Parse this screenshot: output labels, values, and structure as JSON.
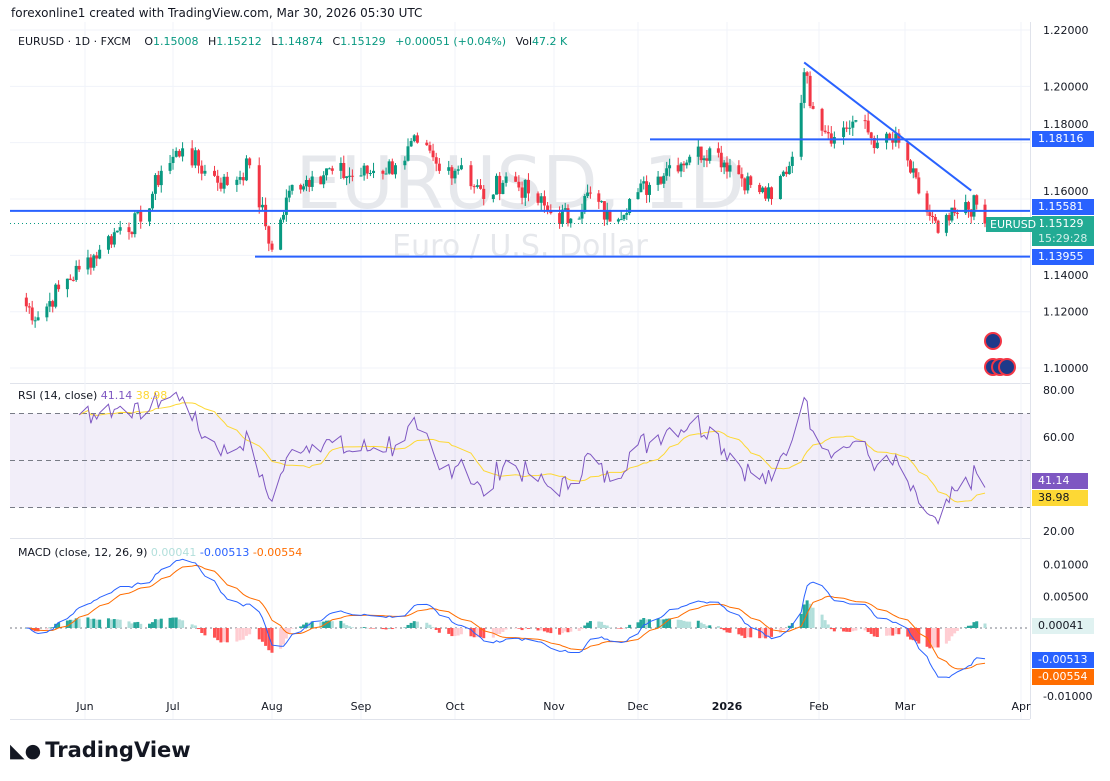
{
  "credit": "forexonline1 created with TradingView.com, Mar 30, 2026 05:30 UTC",
  "legend": {
    "symbol": "EURUSD · 1D · FXCM",
    "o_label": "O",
    "o": "1.15008",
    "h_label": "H",
    "h": "1.15212",
    "l_label": "L",
    "l": "1.14874",
    "c_label": "C",
    "c": "1.15129",
    "change": "+0.00051 (+0.04%)",
    "vol_label": "Vol",
    "vol": "47.2 K"
  },
  "watermark": {
    "title": "EURUSD, 1D",
    "subtitle": "Euro / U.S. Dollar"
  },
  "colors": {
    "up": "#089981",
    "down": "#f23645",
    "line": "#2962ff",
    "rsi": "#7e57c2",
    "rsi_ma": "#fdd835",
    "macd": "#2962ff",
    "signal": "#ff6d00"
  },
  "price_tags": {
    "res": "1.18116",
    "mid": "1.15581",
    "last": "1.15129",
    "countdown": "15:29:28",
    "sup": "1.13955",
    "symbol_tag": "EURUSD"
  },
  "rsi": {
    "label": "RSI (14, close)",
    "value": "41.14",
    "ma": "38.98"
  },
  "macd": {
    "label": "MACD (close, 12, 26, 9)",
    "hist": "0.00041",
    "macd": "-0.00513",
    "signal": "-0.00554"
  },
  "logo": "TradingView",
  "chart_data": {
    "type": "candlestick",
    "price_axis": {
      "ticks": [
        "1.22000",
        "1.20000",
        "1.18000",
        "1.16000",
        "1.14000",
        "1.12000",
        "1.10000"
      ],
      "range": [
        1.1,
        1.22
      ]
    },
    "rsi_axis": {
      "ticks": [
        "80.00",
        "60.00",
        "20.00"
      ],
      "bands": [
        70,
        50,
        30
      ]
    },
    "macd_axis": {
      "ticks": [
        "0.01000",
        "0.00500",
        "-0.01000"
      ]
    },
    "x_ticks": [
      "Jun",
      "Jul",
      "Aug",
      "Sep",
      "Oct",
      "Nov",
      "Dec",
      "2026",
      "Feb",
      "Mar",
      "Apr"
    ],
    "weekly_closes": [
      [
        "2025-05-09",
        1.125
      ],
      [
        "2025-05-16",
        1.118
      ],
      [
        "2025-05-23",
        1.128
      ],
      [
        "2025-05-30",
        1.135
      ],
      [
        "2025-06-06",
        1.142
      ],
      [
        "2025-06-13",
        1.15
      ],
      [
        "2025-06-20",
        1.152
      ],
      [
        "2025-06-27",
        1.17
      ],
      [
        "2025-07-04",
        1.178
      ],
      [
        "2025-07-11",
        1.17
      ],
      [
        "2025-07-18",
        1.165
      ],
      [
        "2025-07-25",
        1.172
      ],
      [
        "2025-08-01",
        1.142
      ],
      [
        "2025-08-08",
        1.165
      ],
      [
        "2025-08-15",
        1.168
      ],
      [
        "2025-08-22",
        1.17
      ],
      [
        "2025-08-29",
        1.168
      ],
      [
        "2025-09-05",
        1.17
      ],
      [
        "2025-09-12",
        1.172
      ],
      [
        "2025-09-19",
        1.18
      ],
      [
        "2025-09-26",
        1.17
      ],
      [
        "2025-10-03",
        1.172
      ],
      [
        "2025-10-10",
        1.16
      ],
      [
        "2025-10-17",
        1.168
      ],
      [
        "2025-10-24",
        1.162
      ],
      [
        "2025-10-31",
        1.155
      ],
      [
        "2025-11-07",
        1.153
      ],
      [
        "2025-11-14",
        1.162
      ],
      [
        "2025-11-21",
        1.152
      ],
      [
        "2025-11-28",
        1.16
      ],
      [
        "2025-12-05",
        1.165
      ],
      [
        "2025-12-12",
        1.172
      ],
      [
        "2025-12-19",
        1.175
      ],
      [
        "2025-12-26",
        1.178
      ],
      [
        "2026-01-02",
        1.172
      ],
      [
        "2026-01-09",
        1.165
      ],
      [
        "2026-01-16",
        1.16
      ],
      [
        "2026-01-23",
        1.175
      ],
      [
        "2026-01-27",
        1.205
      ],
      [
        "2026-01-30",
        1.192
      ],
      [
        "2026-02-06",
        1.182
      ],
      [
        "2026-02-13",
        1.188
      ],
      [
        "2026-02-20",
        1.18
      ],
      [
        "2026-02-27",
        1.18
      ],
      [
        "2026-03-06",
        1.162
      ],
      [
        "2026-03-13",
        1.148
      ],
      [
        "2026-03-20",
        1.155
      ],
      [
        "2026-03-27",
        1.158
      ],
      [
        "2026-03-30",
        1.15129
      ]
    ],
    "hlines": [
      1.18116,
      1.15581,
      1.13955
    ],
    "trendline": [
      [
        "2026-01-27",
        1.2085
      ],
      [
        "2026-03-25",
        1.163
      ]
    ]
  }
}
